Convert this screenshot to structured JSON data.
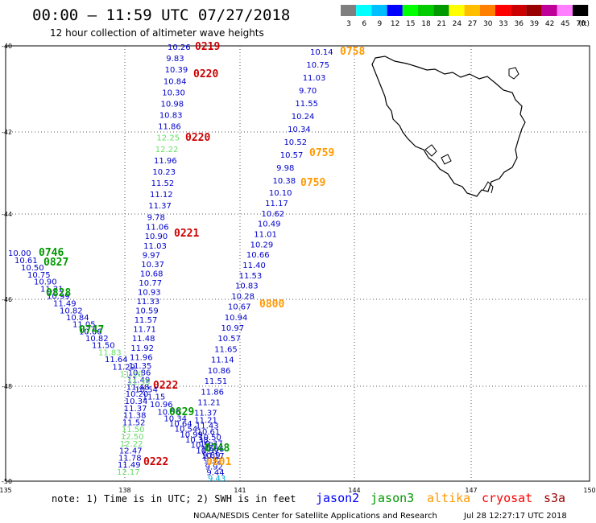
{
  "header": {
    "title": "00:00 – 11:59 UTC 07/27/2018",
    "subtitle": "12 hour collection of altimeter wave heights"
  },
  "legend": {
    "colors": [
      "#7f7f7f",
      "#00ffff",
      "#00bfff",
      "#0000ff",
      "#00ff00",
      "#00cc00",
      "#009900",
      "#ffff00",
      "#ffbf00",
      "#ff7f00",
      "#ff0000",
      "#cc0000",
      "#990000",
      "#bf0099",
      "#ff7fff",
      "#000000"
    ],
    "labels": [
      "3",
      "6",
      "9",
      "12",
      "15",
      "18",
      "21",
      "24",
      "27",
      "30",
      "33",
      "36",
      "39",
      "42",
      "45",
      "70",
      "(ft)"
    ]
  },
  "axes": {
    "lat_labels": [
      "-40",
      "-42",
      "-44",
      "-46",
      "-48",
      "-50"
    ],
    "lon_labels": [
      "135",
      "138",
      "141",
      "144",
      "147",
      "150"
    ]
  },
  "colors": {
    "jason2": "#0000cc",
    "jason3": "#009900",
    "altika": "#ff9900",
    "cryosat": "#cc0000",
    "s3a": "#cc0000",
    "light": "#66dd66",
    "cyan": "#00aadd",
    "grid": "#555555"
  },
  "note": "note: 1) Time is in UTC; 2) SWH is in feet",
  "satellites": [
    "jason2",
    "jason3",
    "altika",
    "cryosat",
    "s3a"
  ],
  "footer": {
    "credit": "NOAA/NESDIS Center for Satellite Applications and Research",
    "timestamp": "Jul 28 12:27:17 UTC 2018"
  },
  "tracks": {
    "track_a_values": [
      "10.26",
      "9.83",
      "10.39",
      "10.84",
      "10.30",
      "10.98",
      "10.83",
      "11.86",
      "12.25",
      "12.22",
      "11.96",
      "10.23",
      "11.52",
      "11.12",
      "11.37",
      "9.78",
      "11.06",
      "10.90",
      "11.03",
      "9.97",
      "10.37",
      "10.68",
      "10.77",
      "10.93",
      "11.33",
      "10.59",
      "11.57",
      "11.71",
      "11.48",
      "11.92",
      "11.96",
      "11.35",
      "10.86",
      "11.49",
      "11.48",
      "10.20",
      "10.34",
      "11.37",
      "11.38",
      "11.52",
      "11.50",
      "12.50",
      "12.22",
      "12.47",
      "11.78",
      "11.49",
      "12.17"
    ],
    "track_a_times": [
      "0219",
      "0220",
      "0220",
      "0221",
      "0222",
      "0222"
    ],
    "track_b_values": [
      "10.14",
      "10.75",
      "11.03",
      "9.70",
      "11.55",
      "10.24",
      "10.34",
      "10.52",
      "10.57",
      "9.98",
      "10.38",
      "10.10",
      "11.17",
      "10.62",
      "10.49",
      "11.01",
      "10.29",
      "10.66",
      "11.40",
      "11.53",
      "10.83",
      "10.28",
      "10.67",
      "10.94",
      "10.97",
      "10.57",
      "11.65",
      "11.14",
      "10.86",
      "11.51",
      "11.86",
      "11.21",
      "11.37",
      "11.21",
      "11.43",
      "10.61",
      "10.50",
      "10.37",
      "10.66",
      "9.89",
      "9.32",
      "9.92",
      "9.44",
      "9.43"
    ],
    "track_b_times": [
      "0758",
      "0759",
      "0759",
      "0800",
      "0801"
    ],
    "track_c_values": [
      "10.00",
      "10.61",
      "10.50",
      "10.75",
      "10.90",
      "11.21",
      "10.99",
      "11.49",
      "10.82",
      "10.84",
      "11.05",
      "10.66",
      "10.82",
      "11.50",
      "11.83",
      "11.64",
      "11.29",
      "11.20",
      "11.35",
      "10.54",
      "11.15",
      "10.96",
      "10.50",
      "10.34",
      "10.64",
      "10.54",
      "10.99",
      "10.38",
      "10.59",
      "10.37",
      "10.17"
    ],
    "track_c_times": [
      "0746",
      "0827",
      "0828",
      "0747",
      "0829",
      "0748"
    ]
  }
}
